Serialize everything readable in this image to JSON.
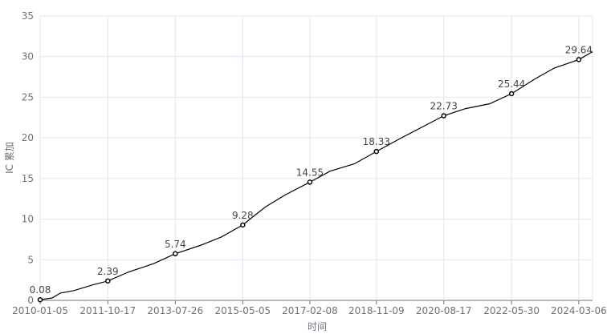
{
  "chart_data": {
    "type": "line",
    "title": "",
    "xlabel": "时间",
    "ylabel": "IC 累加",
    "ylim": [
      0,
      35
    ],
    "yticks": [
      0,
      5,
      10,
      15,
      20,
      25,
      30,
      35
    ],
    "xticks": [
      "2010-01-05",
      "2011-10-17",
      "2013-07-26",
      "2015-05-05",
      "2017-02-08",
      "2018-11-09",
      "2020-08-17",
      "2022-05-30",
      "2024-03-06"
    ],
    "grid": true,
    "line_color": "#000000",
    "grid_color": "#e0e6f1",
    "points": [
      [
        "2010-01-05",
        0.08
      ],
      [
        "2010-05-01",
        0.3
      ],
      [
        "2010-07-18",
        0.9
      ],
      [
        "2010-11-26",
        1.2
      ],
      [
        "2011-05-24",
        1.9
      ],
      [
        "2011-10-17",
        2.39
      ],
      [
        "2012-05-05",
        3.5
      ],
      [
        "2012-12-24",
        4.5
      ],
      [
        "2013-07-26",
        5.74
      ],
      [
        "2014-03-31",
        6.8
      ],
      [
        "2014-10-11",
        7.8
      ],
      [
        "2015-05-05",
        9.28
      ],
      [
        "2015-12-08",
        11.5
      ],
      [
        "2016-06-19",
        13.0
      ],
      [
        "2017-02-08",
        14.55
      ],
      [
        "2017-08-21",
        15.9
      ],
      [
        "2018-04-10",
        16.8
      ],
      [
        "2018-11-09",
        18.33
      ],
      [
        "2019-07-07",
        20.0
      ],
      [
        "2020-01-17",
        21.3
      ],
      [
        "2020-08-17",
        22.73
      ],
      [
        "2021-03-14",
        23.6
      ],
      [
        "2021-11-02",
        24.2
      ],
      [
        "2022-05-30",
        25.44
      ],
      [
        "2023-01-02",
        27.2
      ],
      [
        "2023-07-15",
        28.6
      ],
      [
        "2024-03-06",
        29.64
      ],
      [
        "2024-07-16",
        30.6
      ]
    ],
    "labeled_points": [
      [
        "2010-01-05",
        "0.08"
      ],
      [
        "2011-10-17",
        "2.39"
      ],
      [
        "2013-07-26",
        "5.74"
      ],
      [
        "2015-05-05",
        "9.28"
      ],
      [
        "2017-02-08",
        "14.55"
      ],
      [
        "2018-11-09",
        "18.33"
      ],
      [
        "2020-08-17",
        "22.73"
      ],
      [
        "2022-05-30",
        "25.44"
      ],
      [
        "2024-03-06",
        "29.64"
      ]
    ]
  }
}
